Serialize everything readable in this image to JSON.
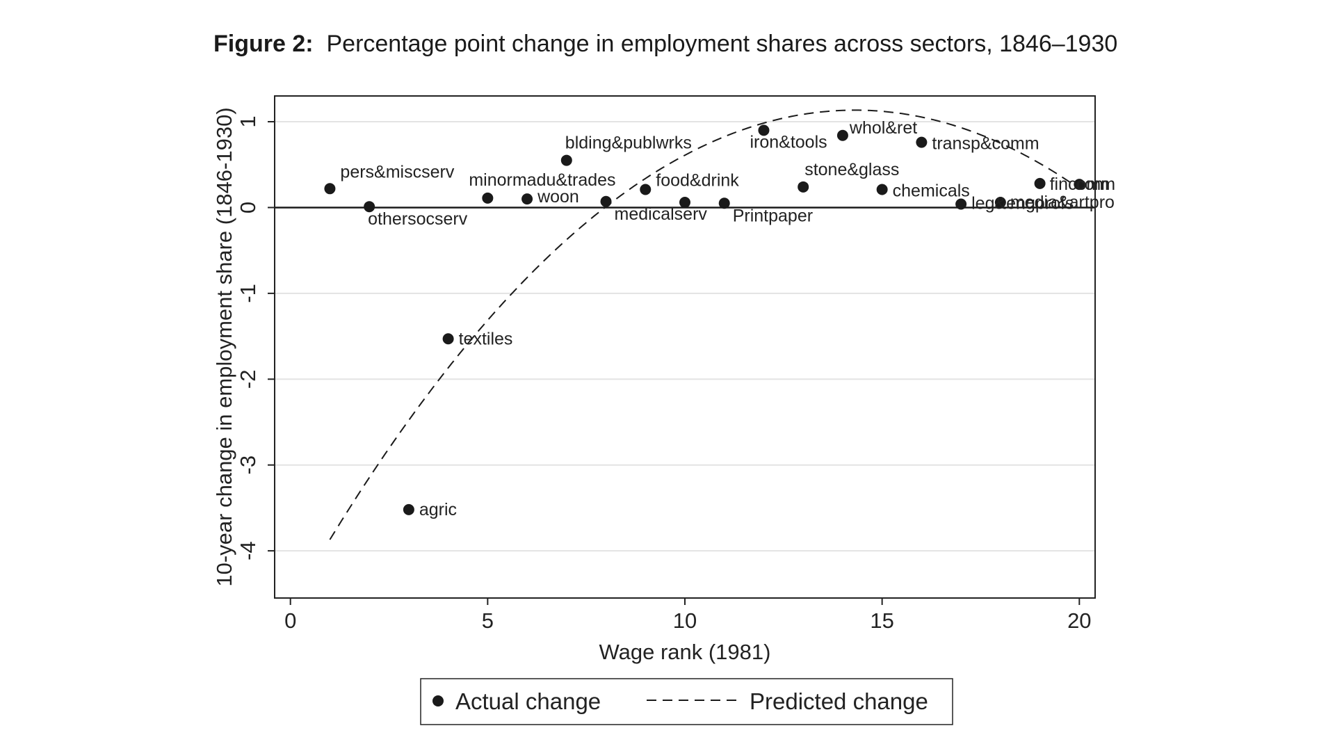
{
  "figure": {
    "number": "Figure 2:",
    "title": "Percentage point change in employment shares across sectors, 1846–1930"
  },
  "chart_data": {
    "type": "scatter",
    "title": "Percentage point change in employment shares across sectors, 1846–1930",
    "xlabel": "Wage rank (1981)",
    "ylabel": "10-year change in employment share (1846-1930)",
    "xlim": [
      -0.4,
      20.4
    ],
    "ylim": [
      -4.55,
      1.3
    ],
    "x_ticks": [
      0,
      5,
      10,
      15,
      20
    ],
    "y_ticks": [
      -4,
      -3,
      -2,
      -1,
      0,
      1
    ],
    "grid": true,
    "reference_line_y": 0,
    "legend_position": "bottom",
    "series": [
      {
        "name": "Actual change",
        "kind": "scatter",
        "color": "#1a1a1a",
        "points": [
          {
            "label": "pers&miscserv",
            "x": 1,
            "y": 0.22
          },
          {
            "label": "othersocserv",
            "x": 2,
            "y": 0.01
          },
          {
            "label": "agric",
            "x": 3,
            "y": -3.52
          },
          {
            "label": "textiles",
            "x": 4,
            "y": -1.53
          },
          {
            "label": "minormadu&trades",
            "x": 5,
            "y": 0.11
          },
          {
            "label": "woon",
            "x": 6,
            "y": 0.1
          },
          {
            "label": "blding&publwrks",
            "x": 7,
            "y": 0.55
          },
          {
            "label": "medicalserv",
            "x": 8,
            "y": 0.07
          },
          {
            "label": "food&drink",
            "x": 9,
            "y": 0.21
          },
          {
            "label": "",
            "x": 10,
            "y": 0.06
          },
          {
            "label": "Printpaper",
            "x": 11,
            "y": 0.05
          },
          {
            "label": "iron&tools",
            "x": 12,
            "y": 0.9
          },
          {
            "label": "stone&glass",
            "x": 13,
            "y": 0.24
          },
          {
            "label": "whol&ret",
            "x": 14,
            "y": 0.84
          },
          {
            "label": "chemicals",
            "x": 15,
            "y": 0.21
          },
          {
            "label": "transp&comm",
            "x": 16,
            "y": 0.76
          },
          {
            "label": "leg&engprofs",
            "x": 17,
            "y": 0.04
          },
          {
            "label": "media&artpro",
            "x": 18,
            "y": 0.06
          },
          {
            "label": "fincomm",
            "x": 19,
            "y": 0.28
          },
          {
            "label": "com",
            "x": 20,
            "y": 0.27
          }
        ]
      },
      {
        "name": "Predicted change",
        "kind": "line",
        "dash": "dashed",
        "color": "#1a1a1a",
        "quadratic": {
          "a": -0.02825,
          "b": 0.8085,
          "c": -4.65
        },
        "x_range": [
          1,
          20
        ]
      }
    ]
  }
}
